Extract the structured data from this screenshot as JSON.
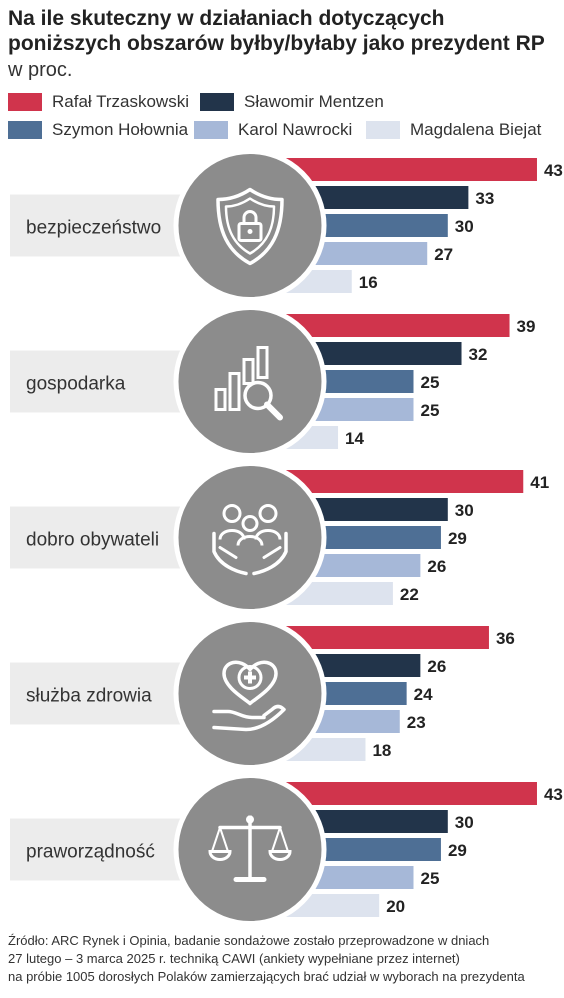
{
  "title_line1": "Na ile skuteczny w działaniach dotyczących",
  "title_line2": "poniższych obszarów byłby/byłaby jako prezydent RP",
  "subtitle": "w proc.",
  "legend": [
    {
      "name": "Rafał Trzaskowski",
      "color": "#d0344c"
    },
    {
      "name": "Sławomir Mentzen",
      "color": "#22344a"
    },
    {
      "name": "Szymon Hołownia",
      "color": "#4e6f95"
    },
    {
      "name": "Karol Nawrocki",
      "color": "#a6b8d8"
    },
    {
      "name": "Magdalena Biejat",
      "color": "#dde3ee"
    }
  ],
  "chart_data": {
    "type": "bar",
    "orientation": "horizontal",
    "categories": [
      "bezpieczeństwo",
      "gospodarka",
      "dobro obywateli",
      "służba zdrowia",
      "praworządność"
    ],
    "icons": [
      "shield-lock-icon",
      "bar-chart-magnifier-icon",
      "family-hands-icon",
      "heart-cross-hand-icon",
      "scales-icon"
    ],
    "series": [
      {
        "name": "Rafał Trzaskowski",
        "values": [
          43,
          39,
          41,
          36,
          43
        ]
      },
      {
        "name": "Sławomir Mentzen",
        "values": [
          33,
          32,
          30,
          26,
          30
        ]
      },
      {
        "name": "Szymon Hołownia",
        "values": [
          30,
          25,
          29,
          24,
          29
        ]
      },
      {
        "name": "Karol Nawrocki",
        "values": [
          27,
          25,
          26,
          23,
          25
        ]
      },
      {
        "name": "Magdalena Biejat",
        "values": [
          16,
          14,
          22,
          18,
          20
        ]
      }
    ],
    "colors": [
      "#d0344c",
      "#22344a",
      "#4e6f95",
      "#a6b8d8",
      "#dde3ee"
    ],
    "unit": "%"
  },
  "source_lines": [
    "Źródło: ARC Rynek i Opinia, badanie sondażowe zostało przeprowadzone w dniach",
    "27 lutego – 3 marca 2025 r. techniką CAWI (ankiety wypełniane przez internet)",
    "na próbie 1005 dorosłych Polaków zamierzających brać udział w wyborach na prezydenta"
  ]
}
